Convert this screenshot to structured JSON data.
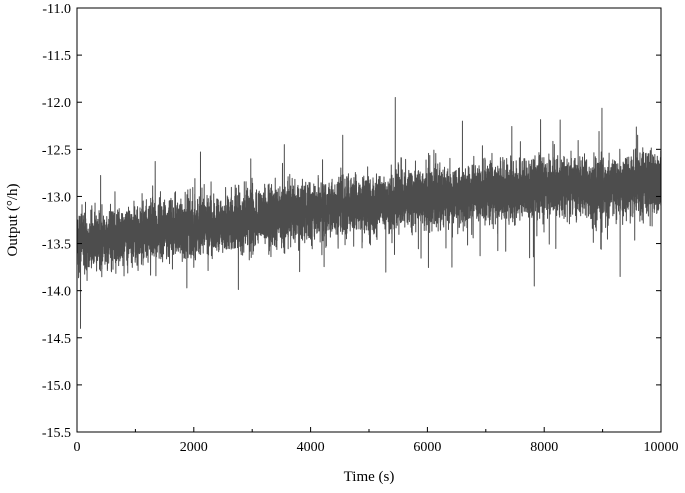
{
  "chart_data": {
    "type": "line",
    "xlabel": "Time (s)",
    "ylabel": "Output (°/h)",
    "xlim": [
      0,
      10000
    ],
    "ylim": [
      -15.5,
      -11.0
    ],
    "xticks": [
      0,
      2000,
      4000,
      6000,
      8000,
      10000
    ],
    "xtick_labels": [
      "0",
      "2000",
      "4000",
      "6000",
      "8000",
      "10000"
    ],
    "yticks": [
      -11.0,
      -11.5,
      -12.0,
      -12.5,
      -13.0,
      -13.5,
      -14.0,
      -14.5,
      -15.0,
      -15.5
    ],
    "ytick_labels": [
      "-11.0",
      "-11.5",
      "-12.0",
      "-12.5",
      "-13.0",
      "-13.5",
      "-14.0",
      "-14.5",
      "-15.0",
      "-15.5"
    ],
    "grid": false,
    "legend": "none",
    "series": [
      {
        "color": "#4d4d4d",
        "description_values": {
          "x": [
            0,
            500,
            1000,
            1500,
            2000,
            2500,
            3000,
            3500,
            4000,
            4500,
            5000,
            5500,
            6000,
            6500,
            7000,
            7500,
            8000,
            8500,
            9000,
            9500,
            10000
          ],
          "mean": [
            -13.5,
            -13.45,
            -13.4,
            -13.35,
            -13.32,
            -13.3,
            -13.25,
            -13.2,
            -13.15,
            -13.1,
            -13.1,
            -13.05,
            -13.0,
            -13.0,
            -12.95,
            -12.95,
            -12.9,
            -12.9,
            -12.9,
            -12.88,
            -12.85
          ],
          "band": [
            0.45,
            0.42,
            0.42,
            0.42,
            0.42,
            0.42,
            0.42,
            0.42,
            0.42,
            0.42,
            0.42,
            0.42,
            0.42,
            0.42,
            0.42,
            0.42,
            0.42,
            0.42,
            0.42,
            0.42,
            0.42
          ]
        },
        "spikes": [
          {
            "x": 60,
            "y": -14.4
          },
          {
            "x": 5450,
            "y": -11.95
          },
          {
            "x": 7830,
            "y": -13.95
          },
          {
            "x": 7750,
            "y": -13.65
          },
          {
            "x": 9600,
            "y": -12.35
          },
          {
            "x": 3550,
            "y": -12.45
          },
          {
            "x": 6420,
            "y": -13.75
          },
          {
            "x": 9300,
            "y": -13.85
          },
          {
            "x": 4550,
            "y": -12.35
          },
          {
            "x": 6600,
            "y": -12.2
          }
        ]
      }
    ]
  }
}
